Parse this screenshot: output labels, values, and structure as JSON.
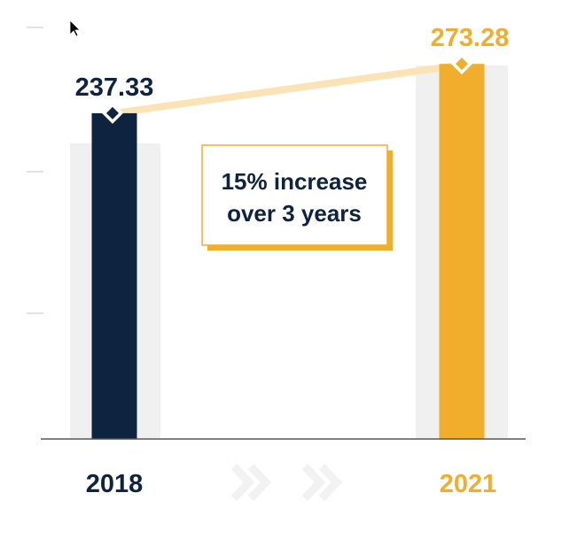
{
  "chart_data": {
    "type": "bar",
    "categories": [
      "2018",
      "2021"
    ],
    "values": [
      237.33,
      273.28
    ],
    "value_labels": [
      "237.33",
      "273.28"
    ],
    "ylim": [
      0,
      285
    ],
    "colors": [
      "#0e2340",
      "#f0ae2c"
    ],
    "background_bar_color": "#f0f0f0",
    "connector_color": "#fbe3b6",
    "callout": {
      "lines": [
        "15% increase",
        "over 3 years"
      ],
      "border_color": "#f0ae2c",
      "shadow_color": "#f0ae2c"
    },
    "chevrons": [
      "chevron-right-icon",
      "chevron-right-icon"
    ],
    "chevron_color": "#f2f2f2",
    "cursor": "pointer-cursor-icon"
  }
}
